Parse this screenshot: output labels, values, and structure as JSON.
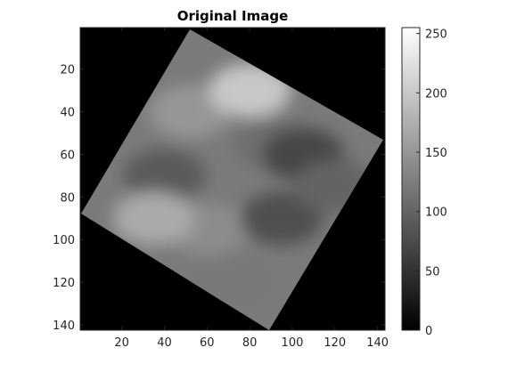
{
  "chart_data": {
    "type": "heatmap",
    "title": "Original Image",
    "xlabel": "",
    "ylabel": "",
    "xlim": [
      0.5,
      143.5
    ],
    "ylim": [
      0.5,
      142.5
    ],
    "x_ticks": [
      20,
      40,
      60,
      80,
      100,
      120,
      140
    ],
    "y_ticks": [
      20,
      40,
      60,
      80,
      100,
      120,
      140
    ],
    "y_direction": "reverse",
    "colormap": "gray",
    "colorbar": {
      "range": [
        0,
        255
      ],
      "ticks": [
        0,
        50,
        100,
        150,
        200,
        250
      ]
    },
    "image_description_regions": [
      {
        "cx": 52,
        "cy": 40,
        "value": 150
      },
      {
        "cx": 92,
        "cy": 55,
        "value": 110
      },
      {
        "cx": 40,
        "cy": 70,
        "value": 90
      },
      {
        "cx": 105,
        "cy": 60,
        "value": 70
      },
      {
        "cx": 60,
        "cy": 95,
        "value": 140
      },
      {
        "cx": 95,
        "cy": 90,
        "value": 80
      },
      {
        "cx": 70,
        "cy": 120,
        "value": 120
      },
      {
        "cx": 35,
        "cy": 90,
        "value": 170
      },
      {
        "cx": 80,
        "cy": 30,
        "value": 200
      },
      {
        "cx": 120,
        "cy": 75,
        "value": 100
      }
    ]
  },
  "colors": {
    "background": "#ffffff",
    "plot_background": "#000000",
    "axis": "#262626"
  }
}
